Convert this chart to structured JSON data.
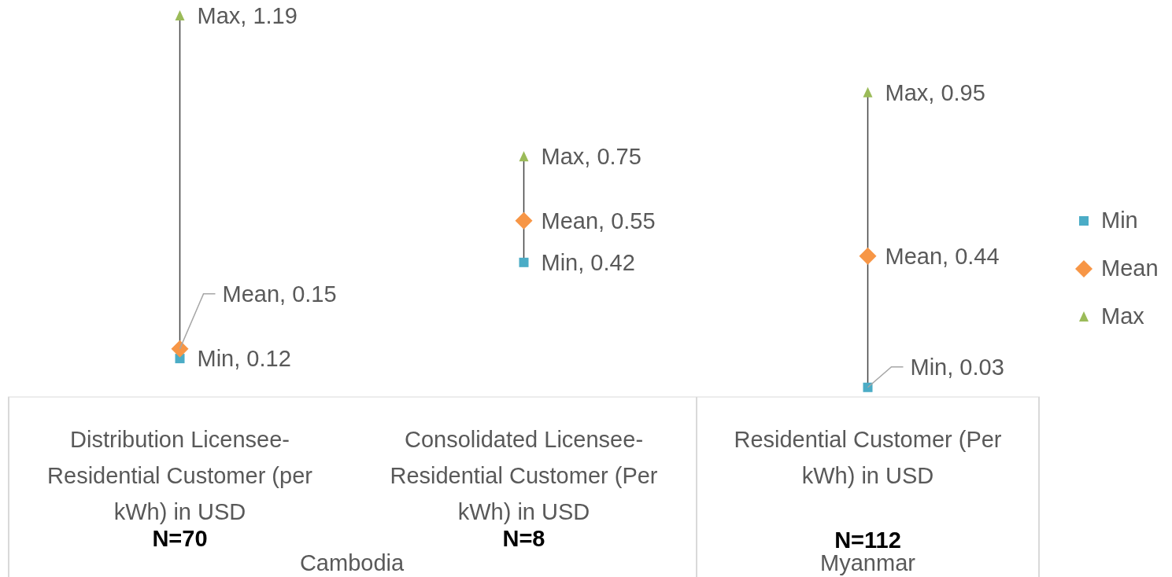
{
  "chart_data": {
    "type": "scatter",
    "categories": [
      "Distribution Licensee-Residential Customer (per kWh) in USD",
      "Consolidated Licensee-Residential Customer (Per kWh) in USD",
      "Residential Customer (Per kWh) in USD"
    ],
    "series": [
      {
        "name": "Min",
        "color": "#4bacc6",
        "marker": "square",
        "values": [
          0.12,
          0.42,
          0.03
        ],
        "value_labels": [
          "Min, 0.12",
          "Min, 0.42",
          "Min, 0.03"
        ]
      },
      {
        "name": "Mean",
        "color": "#f79646",
        "marker": "diamond",
        "values": [
          0.15,
          0.55,
          0.44
        ],
        "value_labels": [
          "Mean, 0.15",
          "Mean, 0.55",
          "Mean, 0.44"
        ]
      },
      {
        "name": "Max",
        "color": "#9bbb59",
        "marker": "triangle",
        "values": [
          1.19,
          0.75,
          0.95
        ],
        "value_labels": [
          "Max, 1.19",
          "Max, 0.75",
          "Max, 0.95"
        ]
      }
    ],
    "legend": "right",
    "annotations": [
      "N=70",
      "N=8",
      "N=112",
      "Cambodia",
      "Myanmar"
    ]
  }
}
